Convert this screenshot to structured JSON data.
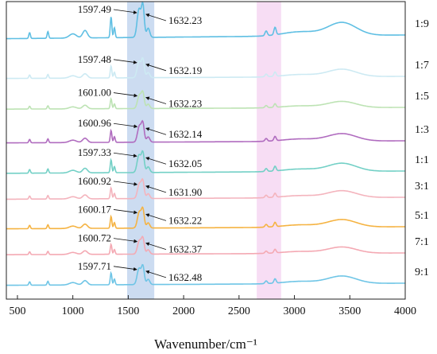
{
  "chart_data": {
    "type": "line",
    "xlabel": "Wavenumber/cm⁻¹",
    "xlim": [
      400,
      4000
    ],
    "x_ticks": [
      500,
      1000,
      1500,
      2000,
      2500,
      3000,
      3500,
      4000
    ],
    "y_ticks": [],
    "grid": false,
    "legend": "none",
    "highlight_bands": [
      {
        "x_range": [
          1490,
          1735
        ],
        "color": "#c7d8f0"
      },
      {
        "x_range": [
          2660,
          2880
        ],
        "color": "#f6d9f3"
      }
    ],
    "annotation_arrows": "peak labels with arrows pointing to the peak positions",
    "series": [
      {
        "name": "1:9",
        "color": "#5fbfe3",
        "offset": 8,
        "left_peak": 1597.49,
        "right_peak": 1632.23
      },
      {
        "name": "1:7",
        "color": "#cdeaf3",
        "offset": 7,
        "left_peak": 1597.48,
        "right_peak": 1632.19
      },
      {
        "name": "1:5",
        "color": "#bde3b4",
        "offset": 6,
        "left_peak": 1601.0,
        "right_peak": 1632.23
      },
      {
        "name": "1:3",
        "color": "#b06cbf",
        "offset": 5,
        "left_peak": 1600.96,
        "right_peak": 1632.14
      },
      {
        "name": "1:1",
        "color": "#73d0c6",
        "offset": 4,
        "left_peak": 1597.33,
        "right_peak": 1632.05
      },
      {
        "name": "3:1",
        "color": "#f4b4bd",
        "offset": 3,
        "left_peak": 1600.92,
        "right_peak": 1631.9
      },
      {
        "name": "5:1",
        "color": "#f5b342",
        "offset": 2,
        "left_peak": 1600.17,
        "right_peak": 1632.22
      },
      {
        "name": "7:1",
        "color": "#f4a9b3",
        "offset": 1,
        "left_peak": 1600.72,
        "right_peak": 1632.37
      },
      {
        "name": "9:1",
        "color": "#6fc5e6",
        "offset": 0,
        "left_peak": 1597.71,
        "right_peak": 1632.48
      }
    ]
  }
}
